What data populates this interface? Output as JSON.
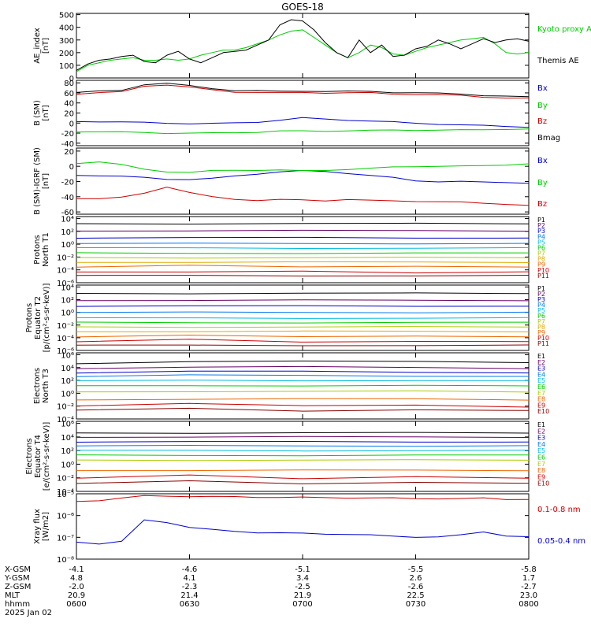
{
  "title": "GOES-18",
  "chart_data": [
    {
      "type": "line",
      "id": "ae",
      "ylabel": [
        "AE_index",
        "[nT]"
      ],
      "yticks": [
        0,
        100,
        200,
        300,
        400,
        500
      ],
      "ylim": [
        0,
        510
      ],
      "scale": "linear",
      "x": [
        "06:00",
        "06:03",
        "06:06",
        "06:09",
        "06:12",
        "06:15",
        "06:18",
        "06:21",
        "06:24",
        "06:27",
        "06:30",
        "06:33",
        "06:36",
        "06:39",
        "06:42",
        "06:45",
        "06:48",
        "06:51",
        "06:54",
        "06:57",
        "07:00",
        "07:03",
        "07:06",
        "07:09",
        "07:12",
        "07:15",
        "07:18",
        "07:21",
        "07:24",
        "07:27",
        "07:30",
        "07:33",
        "07:36",
        "07:39",
        "07:42",
        "07:45",
        "07:48",
        "07:51",
        "07:54",
        "07:57",
        "08:00"
      ],
      "series": [
        {
          "name": "Kyoto proxy AE",
          "color": "#00cc00",
          "values": [
            50,
            100,
            120,
            140,
            150,
            160,
            140,
            140,
            150,
            140,
            150,
            180,
            200,
            220,
            220,
            240,
            270,
            300,
            340,
            370,
            380,
            320,
            260,
            200,
            160,
            200,
            260,
            240,
            190,
            180,
            210,
            240,
            260,
            280,
            300,
            310,
            320,
            270,
            200,
            190,
            200
          ]
        },
        {
          "name": "Themis AE",
          "color": "#000000",
          "values": [
            60,
            110,
            140,
            150,
            170,
            180,
            130,
            120,
            180,
            210,
            150,
            120,
            160,
            200,
            210,
            220,
            260,
            300,
            420,
            460,
            450,
            380,
            280,
            200,
            160,
            300,
            200,
            260,
            170,
            180,
            230,
            250,
            300,
            270,
            230,
            270,
            310,
            280,
            300,
            310,
            290
          ]
        }
      ]
    },
    {
      "type": "line",
      "id": "bsm",
      "ylabel": [
        "B (SM)",
        "[nT]"
      ],
      "yticks": [
        -40,
        -20,
        0,
        20,
        40,
        60,
        80
      ],
      "ylim": [
        -45,
        85
      ],
      "scale": "linear",
      "x": [
        "06:00",
        "06:06",
        "06:12",
        "06:18",
        "06:24",
        "06:30",
        "06:36",
        "06:42",
        "06:48",
        "06:54",
        "07:00",
        "07:06",
        "07:12",
        "07:18",
        "07:24",
        "07:30",
        "07:36",
        "07:42",
        "07:48",
        "07:54",
        "08:00"
      ],
      "series": [
        {
          "name": "Bx",
          "color": "#0000cc",
          "values": [
            3,
            3,
            2,
            1,
            0,
            -1,
            -1,
            0,
            2,
            6,
            10,
            8,
            6,
            4,
            2,
            0,
            -2,
            -4,
            -5,
            -6,
            -8
          ]
        },
        {
          "name": "By",
          "color": "#00cc00",
          "values": [
            -17,
            -17,
            -18,
            -19,
            -20,
            -20,
            -20,
            -19,
            -18,
            -16,
            -16,
            -16,
            -15,
            -15,
            -14,
            -14,
            -14,
            -14,
            -13,
            -12,
            -12
          ]
        },
        {
          "name": "Bz",
          "color": "#cc0000",
          "values": [
            58,
            60,
            62,
            74,
            76,
            71,
            66,
            62,
            61,
            60,
            61,
            60,
            60,
            60,
            58,
            57,
            56,
            55,
            52,
            50,
            49
          ]
        },
        {
          "name": "Bmag",
          "color": "#000000",
          "values": [
            61,
            63,
            65,
            77,
            79,
            74,
            69,
            65,
            64,
            63,
            64,
            63,
            63,
            63,
            61,
            60,
            59,
            58,
            55,
            53,
            52
          ]
        }
      ]
    },
    {
      "type": "line",
      "id": "bigrf",
      "ylabel": [
        "B (SM)-IGRF (SM)",
        "[nT]"
      ],
      "yticks": [
        -60,
        -40,
        -20,
        0,
        20
      ],
      "ylim": [
        -63,
        24
      ],
      "scale": "linear",
      "x": [
        "06:00",
        "06:06",
        "06:12",
        "06:18",
        "06:24",
        "06:30",
        "06:36",
        "06:42",
        "06:48",
        "06:54",
        "07:00",
        "07:06",
        "07:12",
        "07:18",
        "07:24",
        "07:30",
        "07:36",
        "07:42",
        "07:48",
        "07:54",
        "08:00"
      ],
      "series": [
        {
          "name": "Bx",
          "color": "#0000cc",
          "values": [
            -12,
            -12,
            -13,
            -15,
            -17,
            -17,
            -16,
            -13,
            -10,
            -7,
            -6,
            -7,
            -9,
            -12,
            -15,
            -19,
            -20,
            -20,
            -21,
            -21,
            -22
          ]
        },
        {
          "name": "By",
          "color": "#00cc00",
          "values": [
            4,
            6,
            2,
            -4,
            -7,
            -8,
            -6,
            -5,
            -5,
            -5,
            -6,
            -5,
            -4,
            -3,
            -1,
            0,
            0,
            0,
            1,
            2,
            3
          ]
        },
        {
          "name": "Bz",
          "color": "#cc0000",
          "values": [
            -42,
            -43,
            -41,
            -35,
            -27,
            -35,
            -40,
            -43,
            -45,
            -44,
            -44,
            -45,
            -44,
            -45,
            -45,
            -46,
            -47,
            -47,
            -48,
            -50,
            -52
          ]
        }
      ]
    },
    {
      "type": "line",
      "id": "p_t1",
      "ylabel": [
        "Protons",
        "North T1"
      ],
      "yticks_exp": [
        -6,
        -4,
        -2,
        0,
        2,
        4
      ],
      "ylim_exp": [
        -6,
        4.3
      ],
      "scale": "log",
      "series": [
        {
          "name": "P1",
          "color": "#000000",
          "log10": [
            3.2,
            3.2,
            3.2,
            3.2,
            3.2
          ]
        },
        {
          "name": "P2",
          "color": "#660066",
          "log10": [
            2.1,
            2.1,
            2.1,
            2.1,
            2.1
          ]
        },
        {
          "name": "P3",
          "color": "#0000cc",
          "log10": [
            1.0,
            1.0,
            1.0,
            1.0,
            1.0
          ]
        },
        {
          "name": "P4",
          "color": "#0077ee",
          "log10": [
            0.1,
            0.1,
            0.1,
            0.1,
            0.1
          ]
        },
        {
          "name": "P5",
          "color": "#00bbdd",
          "log10": [
            -0.6,
            -0.6,
            -0.6,
            -0.6,
            -0.6
          ]
        },
        {
          "name": "P6",
          "color": "#00cc00",
          "log10": [
            -1.4,
            -1.4,
            -1.4,
            -1.4,
            -1.4
          ]
        },
        {
          "name": "P7",
          "color": "#aacc00",
          "log10": [
            -2.1,
            -2.1,
            -2.1,
            -2.1,
            -2.1
          ]
        },
        {
          "name": "P8",
          "color": "#ddaa00",
          "log10": [
            -2.8,
            -2.8,
            -2.8,
            -2.8,
            -2.8
          ]
        },
        {
          "name": "P9",
          "color": "#ee6600",
          "log10": [
            -3.5,
            -3.3,
            -3.6,
            -3.4,
            -3.5
          ]
        },
        {
          "name": "P10",
          "color": "#cc0000",
          "log10": [
            -4.3,
            -4.4,
            -4.2,
            -4.4,
            -4.3
          ]
        },
        {
          "name": "P11",
          "color": "#880000",
          "log10": [
            -4.9,
            -4.9,
            -4.9,
            -4.9,
            -4.9
          ]
        }
      ]
    },
    {
      "type": "line",
      "id": "p_t2",
      "ylabel": [
        "Protons",
        "Equator T2",
        "[p/(cm²-s-sr-keV)]"
      ],
      "yticks_exp": [
        -6,
        -4,
        -2,
        0,
        2,
        4
      ],
      "ylim_exp": [
        -6,
        4.3
      ],
      "scale": "log",
      "series": [
        {
          "name": "P1",
          "color": "#000000",
          "log10": [
            3.0,
            3.0,
            3.0,
            3.0,
            3.0
          ]
        },
        {
          "name": "P2",
          "color": "#660066",
          "log10": [
            1.9,
            1.9,
            1.9,
            1.9,
            1.9
          ]
        },
        {
          "name": "P3",
          "color": "#0000cc",
          "log10": [
            1.0,
            1.0,
            1.0,
            1.0,
            1.0
          ]
        },
        {
          "name": "P4",
          "color": "#0077ee",
          "log10": [
            0.0,
            0.0,
            0.0,
            0.0,
            0.0
          ]
        },
        {
          "name": "P5",
          "color": "#00bbdd",
          "log10": [
            -0.9,
            -0.9,
            -0.9,
            -0.9,
            -0.9
          ]
        },
        {
          "name": "P6",
          "color": "#00cc00",
          "log10": [
            -1.6,
            -1.6,
            -1.6,
            -1.6,
            -1.6
          ]
        },
        {
          "name": "P7",
          "color": "#aacc00",
          "log10": [
            -2.3,
            -2.3,
            -2.3,
            -2.3,
            -2.3
          ]
        },
        {
          "name": "P8",
          "color": "#ddaa00",
          "log10": [
            -3.0,
            -3.0,
            -3.0,
            -3.0,
            -3.0
          ]
        },
        {
          "name": "P9",
          "color": "#ee6600",
          "log10": [
            -3.8,
            -3.6,
            -3.9,
            -3.7,
            -3.8
          ]
        },
        {
          "name": "P10",
          "color": "#cc0000",
          "log10": [
            -4.6,
            -4.3,
            -4.7,
            -4.5,
            -4.6
          ]
        },
        {
          "name": "P11",
          "color": "#880000",
          "log10": [
            -5.2,
            -5.2,
            -5.2,
            -5.2,
            -5.2
          ]
        }
      ]
    },
    {
      "type": "line",
      "id": "e_t3",
      "ylabel": [
        "Electrons",
        "North T3"
      ],
      "yticks_exp": [
        -4,
        -2,
        0,
        2,
        4,
        6
      ],
      "ylim_exp": [
        -4,
        6.3
      ],
      "scale": "log",
      "series": [
        {
          "name": "E1",
          "color": "#000000",
          "log10": [
            4.6,
            5.0,
            5.0,
            4.9,
            4.8
          ]
        },
        {
          "name": "E2",
          "color": "#660066",
          "log10": [
            3.9,
            4.1,
            4.1,
            4.0,
            3.9
          ]
        },
        {
          "name": "E3",
          "color": "#0000cc",
          "log10": [
            3.2,
            3.4,
            3.4,
            3.3,
            3.2
          ]
        },
        {
          "name": "E4",
          "color": "#0077ee",
          "log10": [
            2.6,
            2.8,
            2.8,
            2.7,
            2.6
          ]
        },
        {
          "name": "E5",
          "color": "#00bbdd",
          "log10": [
            1.9,
            2.0,
            2.0,
            2.0,
            1.9
          ]
        },
        {
          "name": "E6",
          "color": "#00cc00",
          "log10": [
            1.1,
            1.2,
            1.2,
            1.2,
            1.1
          ]
        },
        {
          "name": "E7",
          "color": "#aacc00",
          "log10": [
            0.2,
            0.3,
            0.3,
            0.3,
            0.2
          ]
        },
        {
          "name": "E8",
          "color": "#ee6600",
          "log10": [
            -1.0,
            -0.9,
            -0.9,
            -0.9,
            -1.0
          ]
        },
        {
          "name": "E9",
          "color": "#cc0000",
          "log10": [
            -1.9,
            -1.6,
            -2.0,
            -1.8,
            -2.1
          ]
        },
        {
          "name": "E10",
          "color": "#880000",
          "log10": [
            -2.6,
            -2.4,
            -2.8,
            -2.5,
            -2.7
          ]
        }
      ]
    },
    {
      "type": "line",
      "id": "e_t4",
      "ylabel": [
        "Electrons",
        "Equator T4",
        "[e/(cm²-s-sr-keV)]"
      ],
      "yticks_exp": [
        -4,
        -2,
        0,
        2,
        4,
        6
      ],
      "ylim_exp": [
        -4,
        6.3
      ],
      "scale": "log",
      "series": [
        {
          "name": "E1",
          "color": "#000000",
          "log10": [
            4.6,
            4.6,
            4.6,
            4.6,
            4.6
          ]
        },
        {
          "name": "E2",
          "color": "#660066",
          "log10": [
            4.0,
            4.0,
            4.0,
            4.0,
            4.0
          ]
        },
        {
          "name": "E3",
          "color": "#0000cc",
          "log10": [
            3.3,
            3.3,
            3.3,
            3.3,
            3.3
          ]
        },
        {
          "name": "E4",
          "color": "#0077ee",
          "log10": [
            2.7,
            2.7,
            2.7,
            2.7,
            2.7
          ]
        },
        {
          "name": "E5",
          "color": "#00bbdd",
          "log10": [
            2.0,
            2.0,
            2.0,
            2.0,
            2.0
          ]
        },
        {
          "name": "E6",
          "color": "#00cc00",
          "log10": [
            1.3,
            1.3,
            1.3,
            1.3,
            1.3
          ]
        },
        {
          "name": "E7",
          "color": "#aacc00",
          "log10": [
            0.6,
            0.6,
            0.6,
            0.6,
            0.6
          ]
        },
        {
          "name": "E8",
          "color": "#ee6600",
          "log10": [
            -0.9,
            -0.9,
            -0.9,
            -0.9,
            -0.9
          ]
        },
        {
          "name": "E9",
          "color": "#cc0000",
          "log10": [
            -2.0,
            -1.6,
            -2.2,
            -1.8,
            -2.0
          ]
        },
        {
          "name": "E10",
          "color": "#880000",
          "log10": [
            -2.8,
            -2.5,
            -2.9,
            -2.6,
            -2.8
          ]
        }
      ]
    },
    {
      "type": "line",
      "id": "xray",
      "ylabel": [
        "Xray flux",
        "[W/m2]"
      ],
      "yticks_exp": [
        -8,
        -7,
        -6,
        -5
      ],
      "ylim_exp": [
        -8,
        -5
      ],
      "scale": "log",
      "x": [
        "06:00",
        "06:06",
        "06:12",
        "06:18",
        "06:24",
        "06:30",
        "06:36",
        "06:42",
        "06:48",
        "06:54",
        "07:00",
        "07:06",
        "07:12",
        "07:18",
        "07:24",
        "07:30",
        "07:36",
        "07:42",
        "07:48",
        "07:54",
        "08:00"
      ],
      "series": [
        {
          "name": "0.1-0.8 nm",
          "color": "#cc0000",
          "log10": [
            -5.35,
            -5.3,
            -5.2,
            -5.1,
            -5.1,
            -5.12,
            -5.13,
            -5.14,
            -5.15,
            -5.16,
            -5.17,
            -5.18,
            -5.18,
            -5.19,
            -5.2,
            -5.22,
            -5.22,
            -5.23,
            -5.2,
            -5.25,
            -5.25
          ]
        },
        {
          "name": "0.05-0.4 nm",
          "color": "#0000cc",
          "log10": [
            -7.2,
            -7.3,
            -7.2,
            -6.2,
            -6.3,
            -6.55,
            -6.65,
            -6.72,
            -6.78,
            -6.8,
            -6.82,
            -6.84,
            -6.86,
            -6.9,
            -6.95,
            -6.98,
            -6.98,
            -6.9,
            -6.75,
            -6.92,
            -6.98
          ]
        }
      ]
    }
  ],
  "xaxis": {
    "rows": [
      {
        "label": "X-GSM",
        "values": [
          "-4.1",
          "-4.6",
          "-5.1",
          "-5.5",
          "-5.8"
        ]
      },
      {
        "label": "Y-GSM",
        "values": [
          "4.8",
          "4.1",
          "3.4",
          "2.6",
          "1.7"
        ]
      },
      {
        "label": "Z-GSM",
        "values": [
          "-2.0",
          "-2.3",
          "-2.5",
          "-2.6",
          "-2.7"
        ]
      },
      {
        "label": "MLT",
        "values": [
          "20.9",
          "21.4",
          "21.9",
          "22.5",
          "23.0"
        ]
      },
      {
        "label": "hhmm",
        "values": [
          "0600",
          "0630",
          "0700",
          "0730",
          "0800"
        ]
      }
    ],
    "date": "2025 Jan 02"
  }
}
